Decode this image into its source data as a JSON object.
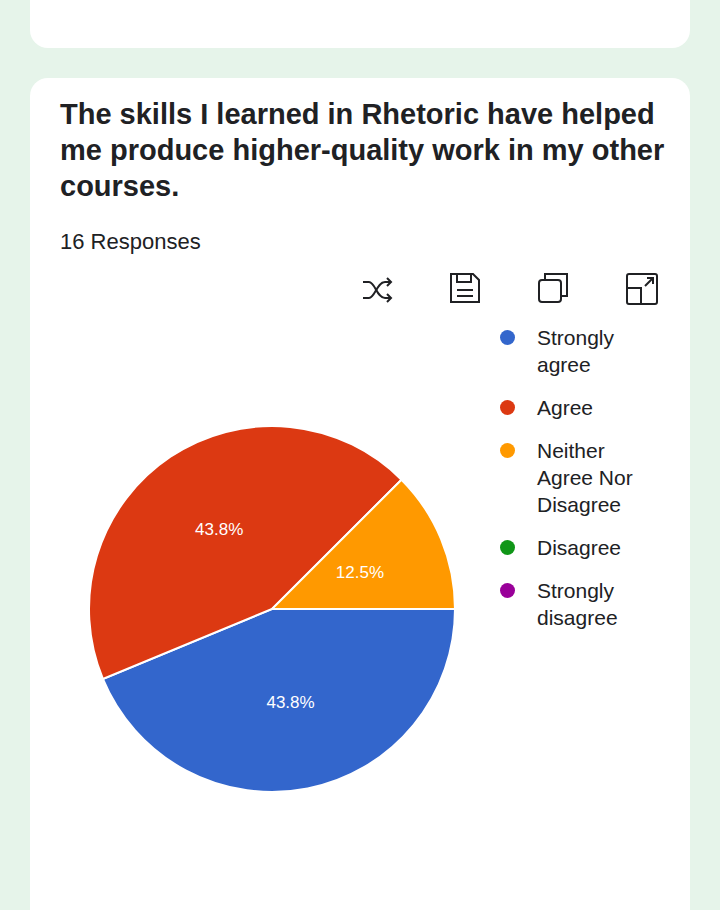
{
  "chart_data": {
    "type": "pie",
    "title": "The skills I learned in Rhetoric have helped me produce higher-quality work in my other courses.",
    "subtitle": "16 Responses",
    "categories": [
      "Strongly agree",
      "Agree",
      "Neither Agree Nor Disagree",
      "Disagree",
      "Strongly disagree"
    ],
    "values": [
      43.8,
      43.8,
      12.5,
      0,
      0
    ],
    "value_labels": [
      "43.8%",
      "43.8%",
      "12.5%",
      null,
      null
    ],
    "colors": [
      "#3366cc",
      "#dc3912",
      "#ff9900",
      "#109618",
      "#990099"
    ],
    "data_labels": true,
    "legend": "right"
  }
}
